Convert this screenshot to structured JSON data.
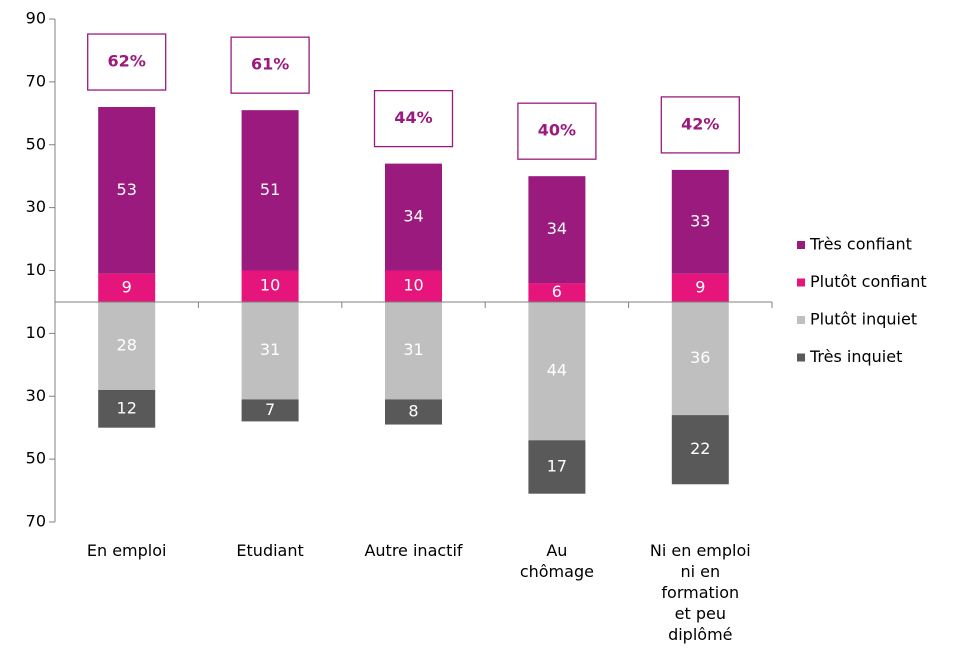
{
  "chart_data": {
    "type": "diverging_stacked_bar",
    "categories": [
      "En emploi",
      "Etudiant",
      "Autre inactif",
      "Au\nchômage",
      "Ni en emploi\nni en\nformation\net peu\ndiplômé"
    ],
    "series": [
      {
        "name": "Très confiant",
        "color": "#9b1a7e",
        "values": [
          53,
          51,
          34,
          34,
          33
        ]
      },
      {
        "name": "Plutôt  confiant",
        "color": "#e5157b",
        "values": [
          9,
          10,
          10,
          6,
          9
        ]
      },
      {
        "name": "Plutôt inquiet",
        "color": "#bfbfbf",
        "values": [
          -28,
          -31,
          -31,
          -44,
          -36
        ],
        "value_labels": [
          "28",
          "31",
          "31",
          "44",
          "36"
        ]
      },
      {
        "name": "Très inquiet",
        "color": "#595959",
        "values": [
          -12,
          -7,
          -8,
          -17,
          -22
        ],
        "value_labels": [
          "12",
          "7",
          "8",
          "17",
          "22"
        ]
      }
    ],
    "annotations": [
      "62%",
      "61%",
      "44%",
      "40%",
      "42%"
    ],
    "ylim": [
      -70,
      90
    ],
    "yticks": [
      90,
      70,
      50,
      30,
      10,
      {
        "value": -10,
        "label": "10"
      },
      {
        "value": -30,
        "label": "30"
      },
      {
        "value": -50,
        "label": "50"
      },
      {
        "value": -70,
        "label": "70"
      }
    ],
    "legend": "right"
  }
}
